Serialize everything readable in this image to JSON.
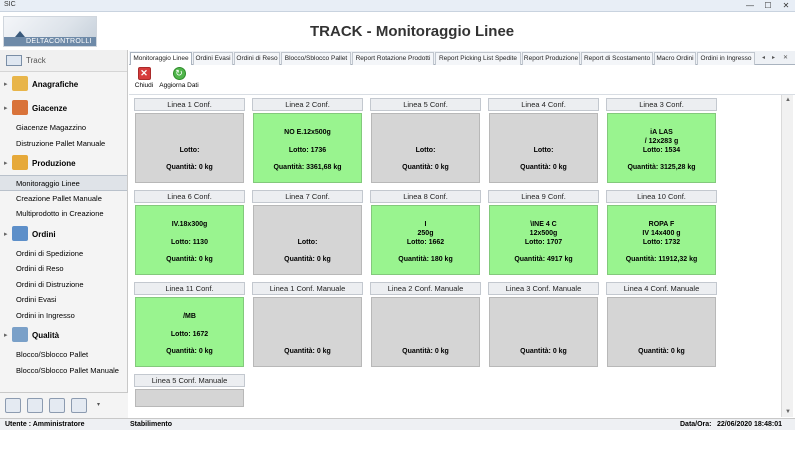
{
  "window": {
    "title": "SIC",
    "minimize": "—",
    "maximize": "☐",
    "close": "✕"
  },
  "header": {
    "logo_text": "DELTACONTROLLI",
    "title": "TRACK - Monitoraggio Linee"
  },
  "sidebar": {
    "top_label": "Track",
    "groups": [
      {
        "label": "Anagrafiche",
        "icon": "folder-icon",
        "color": "#e8b54a",
        "items": []
      },
      {
        "label": "Giacenze",
        "icon": "warehouse-icon",
        "color": "#d9733a",
        "items": [
          "Giacenze Magazzino",
          "Distruzione Pallet Manuale"
        ]
      },
      {
        "label": "Produzione",
        "icon": "production-icon",
        "color": "#e6a93a",
        "items": [
          "Monitoraggio Linee",
          "Creazione Pallet Manuale",
          "Multiprodotto in Creazione"
        ]
      },
      {
        "label": "Ordini",
        "icon": "orders-icon",
        "color": "#5d8fc9",
        "items": [
          "Ordini di Spedizione",
          "Ordini di Reso",
          "Ordini di Distruzione",
          "Ordini Evasi",
          "Ordini in Ingresso"
        ]
      },
      {
        "label": "Qualità",
        "icon": "quality-icon",
        "color": "#7aa0c8",
        "items": [
          "Blocco/Sblocco Pallet",
          "Blocco/Sblocco Pallet Manuale"
        ]
      }
    ],
    "selected_item": "Monitoraggio Linee"
  },
  "tabs": [
    "Monitoraggio Linee",
    "Ordini Evasi",
    "Ordini di Reso",
    "Blocco/Sblocco Pallet",
    "Report Rotazione Prodotti",
    "Report Picking List Spedite",
    "Report Produzione",
    "Report di Scostamento",
    "Macro Ordini",
    "Ordini in Ingresso"
  ],
  "tab_nav": {
    "prev": "◂",
    "next": "▸",
    "close": "✕"
  },
  "toolbar": {
    "close_label": "Chiudi",
    "refresh_label": "Aggiorna Dati"
  },
  "lines": [
    {
      "name": "Linea 1 Conf.",
      "active": false,
      "product": "",
      "lotto": "Lotto:",
      "qty": "Quantità: 0 kg"
    },
    {
      "name": "Linea 2 Conf.",
      "active": true,
      "product": "NO E.12x500g",
      "lotto": "Lotto: 1736",
      "qty": "Quantità: 3361,68 kg"
    },
    {
      "name": "Linea 5 Conf.",
      "active": false,
      "product": "",
      "lotto": "Lotto:",
      "qty": "Quantità: 0 kg"
    },
    {
      "name": "Linea 4 Conf.",
      "active": false,
      "product": "",
      "lotto": "Lotto:",
      "qty": "Quantità: 0 kg"
    },
    {
      "name": "Linea 3 Conf.",
      "active": true,
      "product": "iA LAS\n/ 12x283 g",
      "lotto": "Lotto: 1534",
      "qty": "Quantità: 3125,28 kg"
    },
    {
      "name": "Linea 6 Conf.",
      "active": true,
      "product": "IV.18x300g",
      "lotto": "Lotto: 1130",
      "qty": "Quantità: 0 kg"
    },
    {
      "name": "Linea 7 Conf.",
      "active": false,
      "product": "",
      "lotto": "Lotto:",
      "qty": "Quantità: 0 kg"
    },
    {
      "name": "Linea 8 Conf.",
      "active": true,
      "product": "I\n250g",
      "lotto": "Lotto: 1662",
      "qty": "Quantità: 180 kg"
    },
    {
      "name": "Linea 9 Conf.",
      "active": true,
      "product": "\\INE 4 C\n12x500g",
      "lotto": "Lotto: 1707",
      "qty": "Quantità: 4917 kg"
    },
    {
      "name": "Linea 10 Conf.",
      "active": true,
      "product": "ROPA F\nIV 14x400 g",
      "lotto": "Lotto: 1732",
      "qty": "Quantità: 11912,32 kg"
    },
    {
      "name": "Linea 11 Conf.",
      "active": true,
      "product": "/MB",
      "lotto": "Lotto: 1672",
      "qty": "Quantità: 0 kg"
    },
    {
      "name": "Linea 1 Conf. Manuale",
      "active": false,
      "product": "",
      "lotto": "",
      "qty": "Quantità: 0 kg"
    },
    {
      "name": "Linea 2 Conf. Manuale",
      "active": false,
      "product": "",
      "lotto": "",
      "qty": "Quantità: 0 kg"
    },
    {
      "name": "Linea 3 Conf. Manuale",
      "active": false,
      "product": "",
      "lotto": "",
      "qty": "Quantità: 0 kg"
    },
    {
      "name": "Linea 4 Conf. Manuale",
      "active": false,
      "product": "",
      "lotto": "",
      "qty": "Quantità: 0 kg"
    },
    {
      "name": "Linea 5 Conf. Manuale",
      "active": false,
      "product": "",
      "lotto": "",
      "qty": ""
    }
  ],
  "status_bar": {
    "user": "Utente : Amministratore",
    "site": "Stabilimento",
    "date_label": "Data/Ora:",
    "date_value": "22/06/2020 18:48:01"
  }
}
